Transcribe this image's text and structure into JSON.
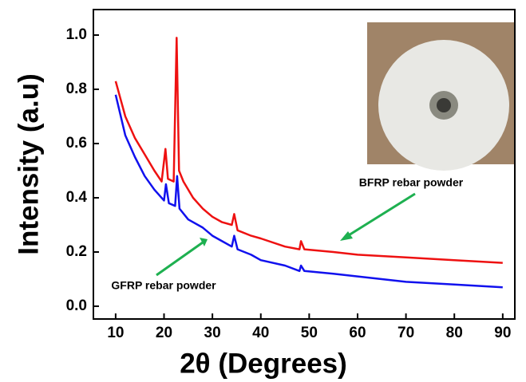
{
  "chart_data": {
    "type": "line",
    "x_label": "2θ (Degrees)",
    "y_label": "Intensity (a.u)",
    "xlim": [
      5.4,
      92.5
    ],
    "ylim": [
      -0.047,
      1.094
    ],
    "xticks": [
      10,
      20,
      30,
      40,
      50,
      60,
      70,
      80,
      90
    ],
    "yticks": [
      {
        "value": 0,
        "label": "0.0"
      },
      0.2,
      0.4,
      0.6,
      0.8,
      {
        "value": 1,
        "label": "1.0"
      }
    ],
    "series": [
      {
        "name": "BFRP rebar powder",
        "color": "#ee1111",
        "x": [
          10,
          12,
          14,
          16,
          18,
          19.5,
          20.3,
          20.8,
          22,
          22.6,
          23.1,
          24,
          26,
          28,
          30,
          32,
          34,
          34.5,
          35.2,
          38,
          40,
          45,
          48,
          48.3,
          49,
          55,
          60,
          70,
          80,
          90
        ],
        "values": [
          0.83,
          0.7,
          0.62,
          0.56,
          0.5,
          0.46,
          0.58,
          0.47,
          0.46,
          0.99,
          0.5,
          0.46,
          0.4,
          0.36,
          0.33,
          0.31,
          0.3,
          0.34,
          0.28,
          0.26,
          0.25,
          0.22,
          0.21,
          0.24,
          0.21,
          0.2,
          0.19,
          0.18,
          0.17,
          0.16
        ]
      },
      {
        "name": "GFRP rebar powder",
        "color": "#1111ee",
        "x": [
          10,
          12,
          14,
          16,
          18,
          20,
          20.4,
          21,
          22.3,
          22.7,
          23.2,
          25,
          28,
          30,
          32,
          34,
          34.5,
          35.2,
          38,
          40,
          45,
          48,
          48.3,
          49,
          55,
          60,
          70,
          80,
          90
        ],
        "values": [
          0.78,
          0.63,
          0.55,
          0.48,
          0.43,
          0.39,
          0.45,
          0.38,
          0.37,
          0.48,
          0.36,
          0.32,
          0.29,
          0.26,
          0.24,
          0.22,
          0.26,
          0.21,
          0.19,
          0.17,
          0.15,
          0.13,
          0.15,
          0.13,
          0.12,
          0.11,
          0.09,
          0.08,
          0.07
        ]
      }
    ]
  }
}
